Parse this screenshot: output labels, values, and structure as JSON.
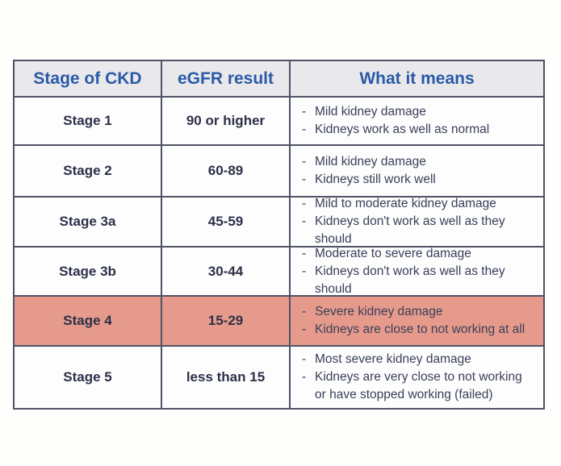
{
  "page": {
    "background": "#fefefd"
  },
  "style": {
    "header_text_color": "#2a5aa8",
    "header_bg": "#e9e9ec",
    "border_color": "#4e5365",
    "body_text_color": "#2c3049",
    "desc_text_color": "#3a4059",
    "highlight_row_bg": "#e69a8c"
  },
  "table": {
    "headers": [
      "Stage of CKD",
      "eGFR result",
      "What it means"
    ],
    "rows": [
      {
        "stage": "Stage 1",
        "egfr": "90 or higher",
        "highlighted": false,
        "meaning": [
          {
            "dash": "-",
            "text": "Mild kidney damage"
          },
          {
            "dash": "-",
            "text": "Kidneys work as well as normal"
          }
        ]
      },
      {
        "stage": "Stage 2",
        "egfr": "60-89",
        "highlighted": false,
        "meaning": [
          {
            "dash": "-",
            "text": "Mild kidney damage"
          },
          {
            "dash": "-",
            "text": "Kidneys still work well"
          }
        ]
      },
      {
        "stage": "Stage 3a",
        "egfr": "45-59",
        "highlighted": false,
        "meaning": [
          {
            "dash": "-",
            "text": "Mild to moderate kidney damage"
          },
          {
            "dash": "-",
            "text": "Kidneys don't work as well as they should"
          }
        ]
      },
      {
        "stage": "Stage 3b",
        "egfr": "30-44",
        "highlighted": false,
        "meaning": [
          {
            "dash": "-",
            "text": "Moderate to severe damage"
          },
          {
            "dash": "-",
            "text": "Kidneys don't work as well as they should"
          }
        ]
      },
      {
        "stage": "Stage 4",
        "egfr": "15-29",
        "highlighted": true,
        "meaning": [
          {
            "dash": "-",
            "text": "Severe kidney damage"
          },
          {
            "dash": "-",
            "text": "Kidneys are close to not working at all"
          }
        ]
      },
      {
        "stage": "Stage 5",
        "egfr": "less than 15",
        "highlighted": false,
        "meaning": [
          {
            "dash": "-",
            "text": "Most severe kidney damage"
          },
          {
            "dash": "-",
            "text": "Kidneys are very close to not working"
          },
          {
            "dash": "",
            "text": "or have stopped working (failed)"
          }
        ]
      }
    ]
  },
  "chart_data": {
    "type": "table",
    "title": "",
    "columns": [
      "Stage of CKD",
      "eGFR result",
      "What it means"
    ],
    "rows": [
      [
        "Stage 1",
        "90 or higher",
        "Mild kidney damage; Kidneys work as well as normal"
      ],
      [
        "Stage 2",
        "60-89",
        "Mild kidney damage; Kidneys still work well"
      ],
      [
        "Stage 3a",
        "45-59",
        "Mild to moderate kidney damage; Kidneys don't work as well as they should"
      ],
      [
        "Stage 3b",
        "30-44",
        "Moderate to severe damage; Kidneys don't work as well as they should"
      ],
      [
        "Stage 4",
        "15-29",
        "Severe kidney damage; Kidneys are close to not working at all"
      ],
      [
        "Stage 5",
        "less than 15",
        "Most severe kidney damage; Kidneys are very close to not working or have stopped working (failed)"
      ]
    ],
    "highlighted_row": "Stage 4",
    "layout_hints": {
      "header_row": true,
      "grid": true,
      "highlight_color": "#e69a8c"
    }
  }
}
